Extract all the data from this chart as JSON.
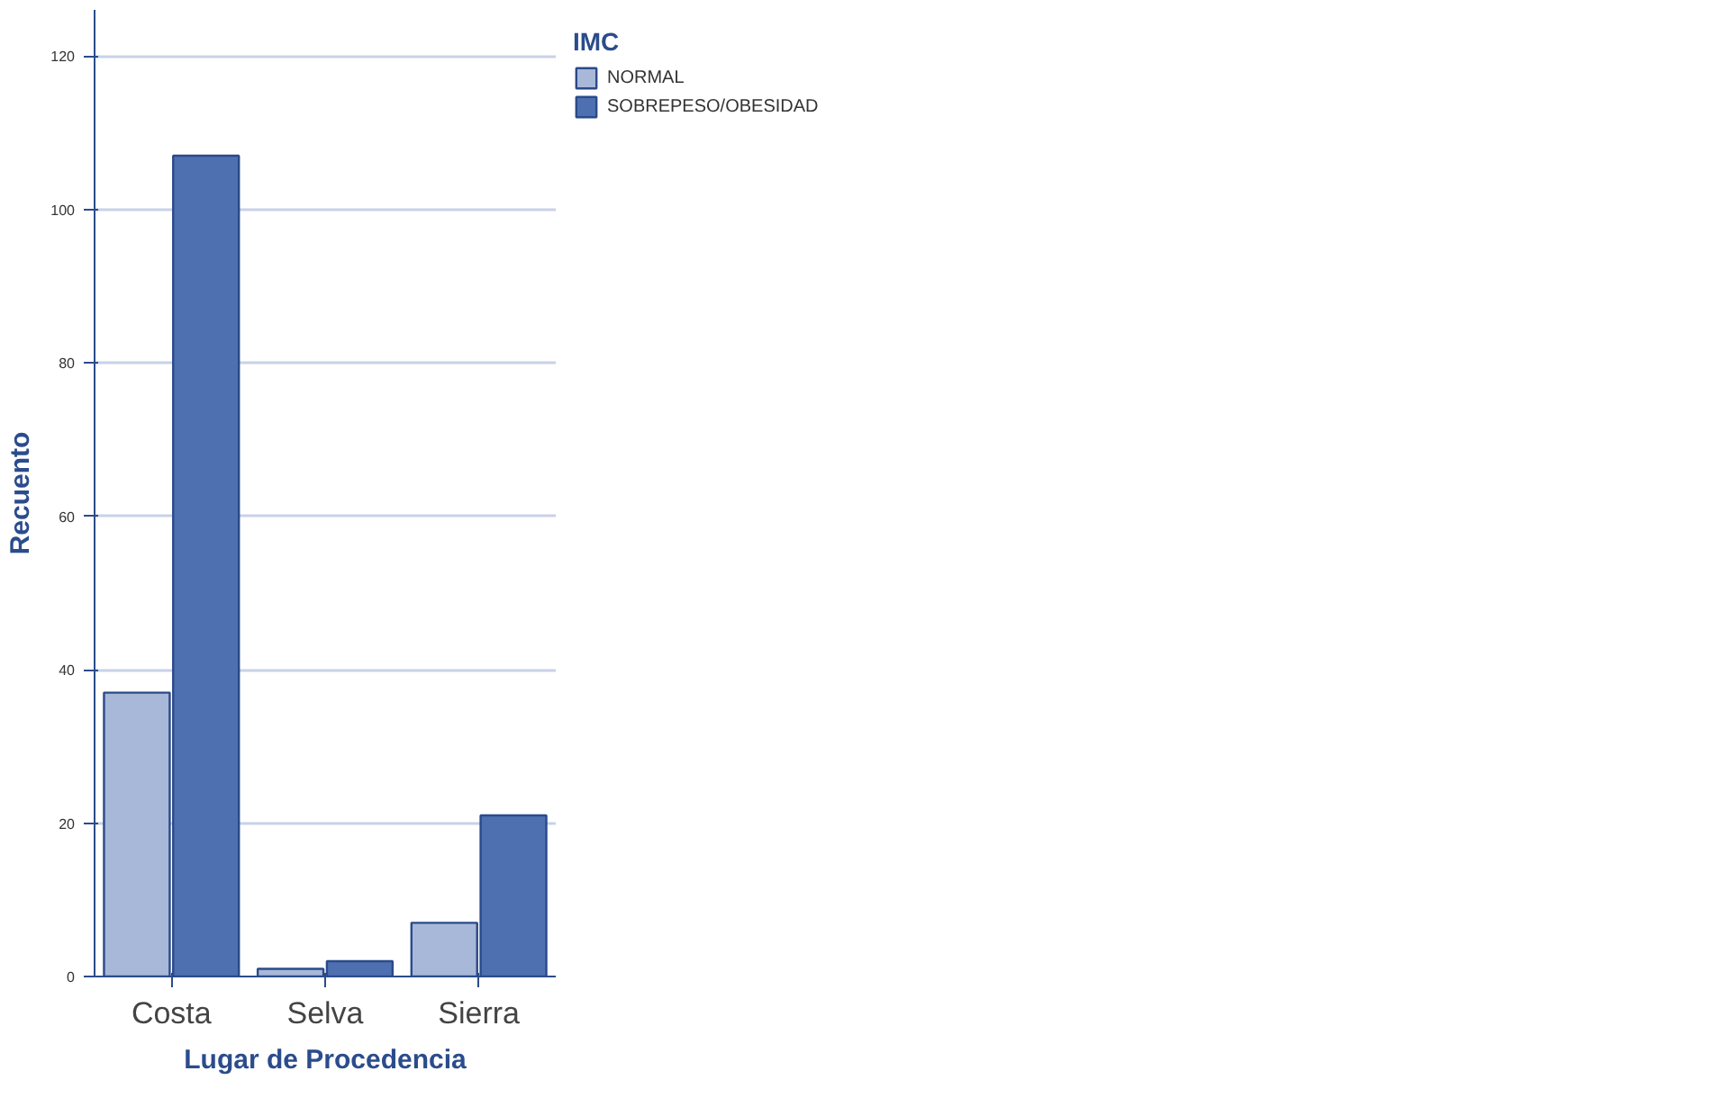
{
  "chart_data": {
    "type": "bar",
    "xlabel": "Lugar de Procedencia",
    "ylabel": "Recuento",
    "legend_title": "IMC",
    "categories": [
      "Costa",
      "Selva",
      "Sierra"
    ],
    "series": [
      {
        "name": "NORMAL",
        "color": "#a8b8d8",
        "values": [
          37,
          1,
          7
        ]
      },
      {
        "name": "SOBREPESO/OBESIDAD",
        "color": "#4e70b0",
        "values": [
          107,
          2,
          21
        ]
      }
    ],
    "ylim": [
      0,
      126
    ],
    "yticks": [
      0,
      20,
      40,
      60,
      80,
      100,
      120
    ],
    "grid": "y",
    "legend": "top right"
  }
}
